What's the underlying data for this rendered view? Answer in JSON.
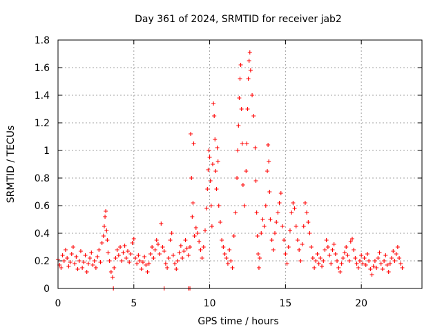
{
  "chart_data": {
    "type": "scatter",
    "title": "Day 361 of 2024, SRMTID for receiver jab2",
    "xlabel": "GPS time / hours",
    "ylabel": "SRMTID / TECUs",
    "xlim": [
      0,
      24
    ],
    "ylim": [
      0,
      1.8
    ],
    "xticks": [
      0,
      5,
      10,
      15,
      20
    ],
    "xtick_labels": [
      "0",
      "5",
      "10",
      "15",
      "20"
    ],
    "yticks": [
      0,
      0.2,
      0.4,
      0.6,
      0.8,
      1,
      1.2,
      1.4,
      1.6,
      1.8
    ],
    "ytick_labels": [
      "0",
      "0.2",
      "0.4",
      "0.6",
      "0.8",
      "1",
      "1.2",
      "1.4",
      "1.6",
      "1.8"
    ],
    "grid": true,
    "marker": "plus",
    "color": "#ff0000",
    "series": [
      {
        "name": "SRMTID",
        "points": [
          [
            0.0,
            0.21
          ],
          [
            0.1,
            0.17
          ],
          [
            0.2,
            0.15
          ],
          [
            0.3,
            0.24
          ],
          [
            0.4,
            0.2
          ],
          [
            0.5,
            0.28
          ],
          [
            0.6,
            0.22
          ],
          [
            0.7,
            0.16
          ],
          [
            0.8,
            0.19
          ],
          [
            0.9,
            0.25
          ],
          [
            1.0,
            0.3
          ],
          [
            1.1,
            0.18
          ],
          [
            1.2,
            0.23
          ],
          [
            1.3,
            0.14
          ],
          [
            1.4,
            0.2
          ],
          [
            1.5,
            0.27
          ],
          [
            1.6,
            0.15
          ],
          [
            1.7,
            0.19
          ],
          [
            1.8,
            0.24
          ],
          [
            1.9,
            0.12
          ],
          [
            2.0,
            0.18
          ],
          [
            2.1,
            0.22
          ],
          [
            2.2,
            0.26
          ],
          [
            2.3,
            0.17
          ],
          [
            2.4,
            0.2
          ],
          [
            2.5,
            0.15
          ],
          [
            2.6,
            0.23
          ],
          [
            2.7,
            0.28
          ],
          [
            2.8,
            0.19
          ],
          [
            2.9,
            0.33
          ],
          [
            3.0,
            0.38
          ],
          [
            3.05,
            0.45
          ],
          [
            3.1,
            0.52
          ],
          [
            3.15,
            0.56
          ],
          [
            3.2,
            0.42
          ],
          [
            3.25,
            0.35
          ],
          [
            3.3,
            0.26
          ],
          [
            3.4,
            0.2
          ],
          [
            3.5,
            0.12
          ],
          [
            3.6,
            0.08
          ],
          [
            3.7,
            0.15
          ],
          [
            3.8,
            0.22
          ],
          [
            3.9,
            0.28
          ],
          [
            4.0,
            0.24
          ],
          [
            4.1,
            0.3
          ],
          [
            4.2,
            0.2
          ],
          [
            4.3,
            0.26
          ],
          [
            4.4,
            0.31
          ],
          [
            4.5,
            0.22
          ],
          [
            4.6,
            0.27
          ],
          [
            4.7,
            0.19
          ],
          [
            4.8,
            0.25
          ],
          [
            4.9,
            0.33
          ],
          [
            5.0,
            0.36
          ],
          [
            5.1,
            0.22
          ],
          [
            5.2,
            0.18
          ],
          [
            5.3,
            0.24
          ],
          [
            5.4,
            0.2
          ],
          [
            5.5,
            0.14
          ],
          [
            5.6,
            0.19
          ],
          [
            5.7,
            0.23
          ],
          [
            5.8,
            0.17
          ],
          [
            5.9,
            0.12
          ],
          [
            6.0,
            0.18
          ],
          [
            6.1,
            0.25
          ],
          [
            6.2,
            0.3
          ],
          [
            6.3,
            0.22
          ],
          [
            6.4,
            0.28
          ],
          [
            6.5,
            0.35
          ],
          [
            6.6,
            0.32
          ],
          [
            6.7,
            0.25
          ],
          [
            6.8,
            0.47
          ],
          [
            6.9,
            0.3
          ],
          [
            7.0,
            0.27
          ],
          [
            7.1,
            0.18
          ],
          [
            7.2,
            0.15
          ],
          [
            7.3,
            0.22
          ],
          [
            7.4,
            0.35
          ],
          [
            7.5,
            0.4
          ],
          [
            7.6,
            0.24
          ],
          [
            7.7,
            0.18
          ],
          [
            7.8,
            0.14
          ],
          [
            7.9,
            0.2
          ],
          [
            8.0,
            0.26
          ],
          [
            8.1,
            0.31
          ],
          [
            8.2,
            0.22
          ],
          [
            8.3,
            0.27
          ],
          [
            8.4,
            0.35
          ],
          [
            8.5,
            0.29
          ],
          [
            8.6,
            0.24
          ],
          [
            8.7,
            0.3
          ],
          [
            8.75,
            1.12
          ],
          [
            8.8,
            0.8
          ],
          [
            8.85,
            0.52
          ],
          [
            8.9,
            0.62
          ],
          [
            8.95,
            1.05
          ],
          [
            9.0,
            0.38
          ],
          [
            9.1,
            0.44
          ],
          [
            9.2,
            0.4
          ],
          [
            9.3,
            0.34
          ],
          [
            9.4,
            0.28
          ],
          [
            9.5,
            0.22
          ],
          [
            9.6,
            0.3
          ],
          [
            9.7,
            0.42
          ],
          [
            9.8,
            0.58
          ],
          [
            9.85,
            0.72
          ],
          [
            9.9,
            0.86
          ],
          [
            9.95,
            1.0
          ],
          [
            10.0,
            0.95
          ],
          [
            10.05,
            0.78
          ],
          [
            10.1,
            0.6
          ],
          [
            10.15,
            0.45
          ],
          [
            10.2,
            0.9
          ],
          [
            10.25,
            1.34
          ],
          [
            10.3,
            1.25
          ],
          [
            10.35,
            1.08
          ],
          [
            10.4,
            0.85
          ],
          [
            10.45,
            0.72
          ],
          [
            10.5,
            1.02
          ],
          [
            10.55,
            0.92
          ],
          [
            10.6,
            0.6
          ],
          [
            10.7,
            0.48
          ],
          [
            10.8,
            0.35
          ],
          [
            10.9,
            0.3
          ],
          [
            11.0,
            0.25
          ],
          [
            11.1,
            0.22
          ],
          [
            11.2,
            0.18
          ],
          [
            11.3,
            0.28
          ],
          [
            11.4,
            0.2
          ],
          [
            11.5,
            0.15
          ],
          [
            11.6,
            0.38
          ],
          [
            11.7,
            0.55
          ],
          [
            11.8,
            0.8
          ],
          [
            11.85,
            1.0
          ],
          [
            11.9,
            1.18
          ],
          [
            11.95,
            1.38
          ],
          [
            12.0,
            1.52
          ],
          [
            12.05,
            1.62
          ],
          [
            12.1,
            1.3
          ],
          [
            12.15,
            1.05
          ],
          [
            12.2,
            0.75
          ],
          [
            12.3,
            0.6
          ],
          [
            12.4,
            0.85
          ],
          [
            12.45,
            1.05
          ],
          [
            12.5,
            1.3
          ],
          [
            12.55,
            1.52
          ],
          [
            12.6,
            1.65
          ],
          [
            12.65,
            1.71
          ],
          [
            12.7,
            1.58
          ],
          [
            12.8,
            1.4
          ],
          [
            12.9,
            1.25
          ],
          [
            13.0,
            1.02
          ],
          [
            13.05,
            0.78
          ],
          [
            13.1,
            0.55
          ],
          [
            13.15,
            0.38
          ],
          [
            13.2,
            0.25
          ],
          [
            13.25,
            0.15
          ],
          [
            13.3,
            0.22
          ],
          [
            13.4,
            0.4
          ],
          [
            13.5,
            0.5
          ],
          [
            13.6,
            0.45
          ],
          [
            13.7,
            0.6
          ],
          [
            13.8,
            0.85
          ],
          [
            13.85,
            1.04
          ],
          [
            13.9,
            0.92
          ],
          [
            13.95,
            0.7
          ],
          [
            14.0,
            0.5
          ],
          [
            14.1,
            0.35
          ],
          [
            14.2,
            0.28
          ],
          [
            14.3,
            0.4
          ],
          [
            14.4,
            0.48
          ],
          [
            14.5,
            0.55
          ],
          [
            14.6,
            0.62
          ],
          [
            14.7,
            0.69
          ],
          [
            14.8,
            0.45
          ],
          [
            14.9,
            0.35
          ],
          [
            15.0,
            0.25
          ],
          [
            15.1,
            0.18
          ],
          [
            15.2,
            0.3
          ],
          [
            15.3,
            0.42
          ],
          [
            15.4,
            0.55
          ],
          [
            15.5,
            0.62
          ],
          [
            15.6,
            0.58
          ],
          [
            15.7,
            0.45
          ],
          [
            15.8,
            0.35
          ],
          [
            15.9,
            0.28
          ],
          [
            16.0,
            0.2
          ],
          [
            16.1,
            0.32
          ],
          [
            16.2,
            0.45
          ],
          [
            16.3,
            0.62
          ],
          [
            16.4,
            0.55
          ],
          [
            16.5,
            0.48
          ],
          [
            16.6,
            0.4
          ],
          [
            16.7,
            0.3
          ],
          [
            16.8,
            0.22
          ],
          [
            16.9,
            0.15
          ],
          [
            17.0,
            0.2
          ],
          [
            17.1,
            0.25
          ],
          [
            17.2,
            0.18
          ],
          [
            17.3,
            0.22
          ],
          [
            17.4,
            0.16
          ],
          [
            17.5,
            0.2
          ],
          [
            17.6,
            0.28
          ],
          [
            17.7,
            0.35
          ],
          [
            17.8,
            0.3
          ],
          [
            17.9,
            0.24
          ],
          [
            18.0,
            0.18
          ],
          [
            18.1,
            0.28
          ],
          [
            18.2,
            0.32
          ],
          [
            18.3,
            0.25
          ],
          [
            18.4,
            0.2
          ],
          [
            18.5,
            0.15
          ],
          [
            18.6,
            0.12
          ],
          [
            18.7,
            0.18
          ],
          [
            18.8,
            0.22
          ],
          [
            18.9,
            0.26
          ],
          [
            19.0,
            0.3
          ],
          [
            19.1,
            0.24
          ],
          [
            19.2,
            0.2
          ],
          [
            19.3,
            0.34
          ],
          [
            19.4,
            0.36
          ],
          [
            19.5,
            0.28
          ],
          [
            19.6,
            0.22
          ],
          [
            19.7,
            0.18
          ],
          [
            19.8,
            0.15
          ],
          [
            19.9,
            0.2
          ],
          [
            20.0,
            0.24
          ],
          [
            20.1,
            0.18
          ],
          [
            20.2,
            0.22
          ],
          [
            20.3,
            0.17
          ],
          [
            20.4,
            0.25
          ],
          [
            20.5,
            0.2
          ],
          [
            20.6,
            0.14
          ],
          [
            20.7,
            0.1
          ],
          [
            20.8,
            0.16
          ],
          [
            20.9,
            0.2
          ],
          [
            21.0,
            0.15
          ],
          [
            21.1,
            0.22
          ],
          [
            21.2,
            0.26
          ],
          [
            21.3,
            0.18
          ],
          [
            21.4,
            0.14
          ],
          [
            21.5,
            0.2
          ],
          [
            21.6,
            0.24
          ],
          [
            21.7,
            0.17
          ],
          [
            21.8,
            0.12
          ],
          [
            21.9,
            0.18
          ],
          [
            22.0,
            0.22
          ],
          [
            22.1,
            0.27
          ],
          [
            22.2,
            0.2
          ],
          [
            22.3,
            0.25
          ],
          [
            22.4,
            0.3
          ],
          [
            22.5,
            0.22
          ],
          [
            22.6,
            0.18
          ],
          [
            22.7,
            0.15
          ],
          [
            3.65,
            0.0
          ],
          [
            7.0,
            0.0
          ],
          [
            8.6,
            0.0
          ],
          [
            8.7,
            0.0
          ]
        ]
      }
    ]
  }
}
